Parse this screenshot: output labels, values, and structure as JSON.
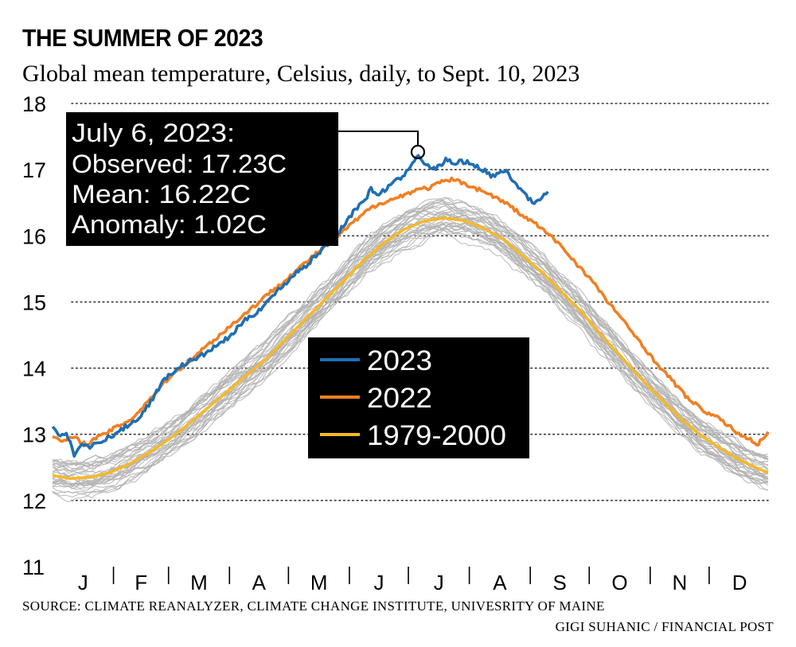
{
  "header": {
    "title": "THE SUMMER OF 2023",
    "subtitle": "Global mean temperature, Celsius, daily, to Sept. 10, 2023"
  },
  "footer": {
    "source": "SOURCE: CLIMATE REANALYZER, CLIMATE CHANGE INSTITUTE, UNIVESRITY OF MAINE",
    "credit": "GIGI SUHANIC / FINANCIAL POST"
  },
  "colors": {
    "series_2023": "#1f6fb2",
    "series_2022": "#f07f23",
    "series_mean": "#f5b82a",
    "history": "#b3b3b3",
    "annotation_bg": "#000000",
    "grid": "#333333"
  },
  "annotation": {
    "lines": [
      "July 6, 2023:",
      "Observed: 17.23C",
      "Mean: 16.22C",
      "Anomaly: 1.02C"
    ]
  },
  "chart_data": {
    "type": "line",
    "title": "THE SUMMER OF 2023",
    "subtitle": "Global mean temperature, Celsius, daily, to Sept. 10, 2023",
    "ylim": [
      11,
      18
    ],
    "yticks": [
      11,
      12,
      13,
      14,
      15,
      16,
      17,
      18
    ],
    "xlim": [
      1,
      365
    ],
    "x_unit": "day of year",
    "month_labels": [
      "J",
      "F",
      "M",
      "A",
      "M",
      "J",
      "J",
      "A",
      "S",
      "O",
      "N",
      "D"
    ],
    "grid": "horizontal dotted",
    "legend": "center",
    "series": [
      {
        "name": "2023",
        "points": [
          [
            1,
            13.1
          ],
          [
            5,
            12.95
          ],
          [
            8,
            13.02
          ],
          [
            12,
            12.7
          ],
          [
            16,
            12.85
          ],
          [
            20,
            12.8
          ],
          [
            25,
            12.9
          ],
          [
            30,
            12.95
          ],
          [
            35,
            13.05
          ],
          [
            40,
            13.15
          ],
          [
            45,
            13.25
          ],
          [
            50,
            13.45
          ],
          [
            55,
            13.7
          ],
          [
            60,
            13.9
          ],
          [
            65,
            14.0
          ],
          [
            70,
            14.1
          ],
          [
            75,
            14.15
          ],
          [
            80,
            14.25
          ],
          [
            85,
            14.35
          ],
          [
            90,
            14.45
          ],
          [
            95,
            14.6
          ],
          [
            100,
            14.75
          ],
          [
            105,
            14.85
          ],
          [
            110,
            15.0
          ],
          [
            115,
            15.15
          ],
          [
            120,
            15.3
          ],
          [
            125,
            15.45
          ],
          [
            130,
            15.55
          ],
          [
            135,
            15.7
          ],
          [
            140,
            15.85
          ],
          [
            145,
            16.0
          ],
          [
            150,
            16.2
          ],
          [
            155,
            16.4
          ],
          [
            160,
            16.55
          ],
          [
            163,
            16.7
          ],
          [
            167,
            16.62
          ],
          [
            172,
            16.75
          ],
          [
            177,
            16.85
          ],
          [
            181,
            16.95
          ],
          [
            184,
            17.12
          ],
          [
            187,
            17.23
          ],
          [
            190,
            17.1
          ],
          [
            194,
            17.0
          ],
          [
            198,
            17.05
          ],
          [
            201,
            17.15
          ],
          [
            205,
            17.1
          ],
          [
            210,
            17.12
          ],
          [
            215,
            17.08
          ],
          [
            220,
            17.0
          ],
          [
            224,
            16.9
          ],
          [
            228,
            16.95
          ],
          [
            232,
            16.98
          ],
          [
            236,
            16.8
          ],
          [
            240,
            16.7
          ],
          [
            243,
            16.55
          ],
          [
            246,
            16.5
          ],
          [
            250,
            16.6
          ],
          [
            253,
            16.65
          ]
        ]
      },
      {
        "name": "2022",
        "points": [
          [
            1,
            12.95
          ],
          [
            6,
            12.9
          ],
          [
            12,
            12.95
          ],
          [
            18,
            12.85
          ],
          [
            24,
            12.95
          ],
          [
            30,
            13.05
          ],
          [
            36,
            13.15
          ],
          [
            42,
            13.25
          ],
          [
            48,
            13.45
          ],
          [
            54,
            13.65
          ],
          [
            60,
            13.85
          ],
          [
            66,
            14.0
          ],
          [
            72,
            14.15
          ],
          [
            78,
            14.3
          ],
          [
            84,
            14.45
          ],
          [
            90,
            14.6
          ],
          [
            96,
            14.75
          ],
          [
            102,
            14.9
          ],
          [
            108,
            15.05
          ],
          [
            114,
            15.2
          ],
          [
            120,
            15.35
          ],
          [
            126,
            15.5
          ],
          [
            132,
            15.65
          ],
          [
            138,
            15.8
          ],
          [
            144,
            15.95
          ],
          [
            150,
            16.1
          ],
          [
            156,
            16.25
          ],
          [
            162,
            16.4
          ],
          [
            168,
            16.5
          ],
          [
            174,
            16.55
          ],
          [
            180,
            16.62
          ],
          [
            186,
            16.7
          ],
          [
            192,
            16.72
          ],
          [
            198,
            16.8
          ],
          [
            204,
            16.85
          ],
          [
            210,
            16.8
          ],
          [
            216,
            16.72
          ],
          [
            222,
            16.65
          ],
          [
            228,
            16.55
          ],
          [
            234,
            16.45
          ],
          [
            240,
            16.3
          ],
          [
            246,
            16.2
          ],
          [
            252,
            16.05
          ],
          [
            258,
            15.9
          ],
          [
            264,
            15.7
          ],
          [
            270,
            15.5
          ],
          [
            276,
            15.3
          ],
          [
            282,
            15.05
          ],
          [
            288,
            14.85
          ],
          [
            294,
            14.6
          ],
          [
            300,
            14.4
          ],
          [
            306,
            14.15
          ],
          [
            312,
            13.95
          ],
          [
            318,
            13.75
          ],
          [
            324,
            13.55
          ],
          [
            330,
            13.4
          ],
          [
            336,
            13.3
          ],
          [
            342,
            13.2
          ],
          [
            348,
            13.05
          ],
          [
            354,
            12.95
          ],
          [
            360,
            12.85
          ],
          [
            365,
            13.05
          ]
        ]
      },
      {
        "name": "1979-2000",
        "points": [
          [
            1,
            12.38
          ],
          [
            10,
            12.33
          ],
          [
            20,
            12.35
          ],
          [
            30,
            12.42
          ],
          [
            40,
            12.55
          ],
          [
            50,
            12.72
          ],
          [
            60,
            12.92
          ],
          [
            70,
            13.15
          ],
          [
            80,
            13.4
          ],
          [
            90,
            13.65
          ],
          [
            100,
            13.9
          ],
          [
            110,
            14.15
          ],
          [
            120,
            14.45
          ],
          [
            130,
            14.75
          ],
          [
            140,
            15.05
          ],
          [
            150,
            15.35
          ],
          [
            160,
            15.65
          ],
          [
            170,
            15.9
          ],
          [
            180,
            16.1
          ],
          [
            190,
            16.22
          ],
          [
            200,
            16.27
          ],
          [
            210,
            16.23
          ],
          [
            220,
            16.12
          ],
          [
            230,
            15.95
          ],
          [
            240,
            15.7
          ],
          [
            250,
            15.45
          ],
          [
            260,
            15.15
          ],
          [
            270,
            14.85
          ],
          [
            280,
            14.5
          ],
          [
            290,
            14.18
          ],
          [
            300,
            13.85
          ],
          [
            310,
            13.55
          ],
          [
            320,
            13.25
          ],
          [
            330,
            13.0
          ],
          [
            340,
            12.8
          ],
          [
            350,
            12.62
          ],
          [
            360,
            12.48
          ],
          [
            365,
            12.42
          ]
        ]
      }
    ]
  }
}
